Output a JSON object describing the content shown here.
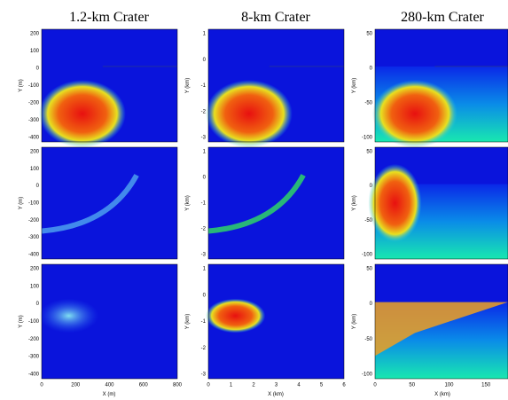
{
  "columns": [
    {
      "title": "1.2-km Crater",
      "y_label": "Y (m)",
      "y_ticks": [
        "200",
        "100",
        "0",
        "-100",
        "-200",
        "-300",
        "-400"
      ],
      "x_label": "X (m)",
      "x_ticks": [
        "0",
        "200",
        "400",
        "600",
        "800"
      ]
    },
    {
      "title": "8-km Crater",
      "y_label": "Y (km)",
      "y_ticks": [
        "1",
        "0",
        "-1",
        "-2",
        "-3"
      ],
      "x_label": "X (km)",
      "x_ticks": [
        "0",
        "1",
        "2",
        "3",
        "4",
        "5",
        "6"
      ]
    },
    {
      "title": "280-km Crater",
      "y_label": "Y (km)",
      "y_ticks": [
        "50",
        "0",
        "-50",
        "-100"
      ],
      "x_label": "X (km)",
      "x_ticks": [
        "0",
        "50",
        "100",
        "150"
      ]
    }
  ]
}
